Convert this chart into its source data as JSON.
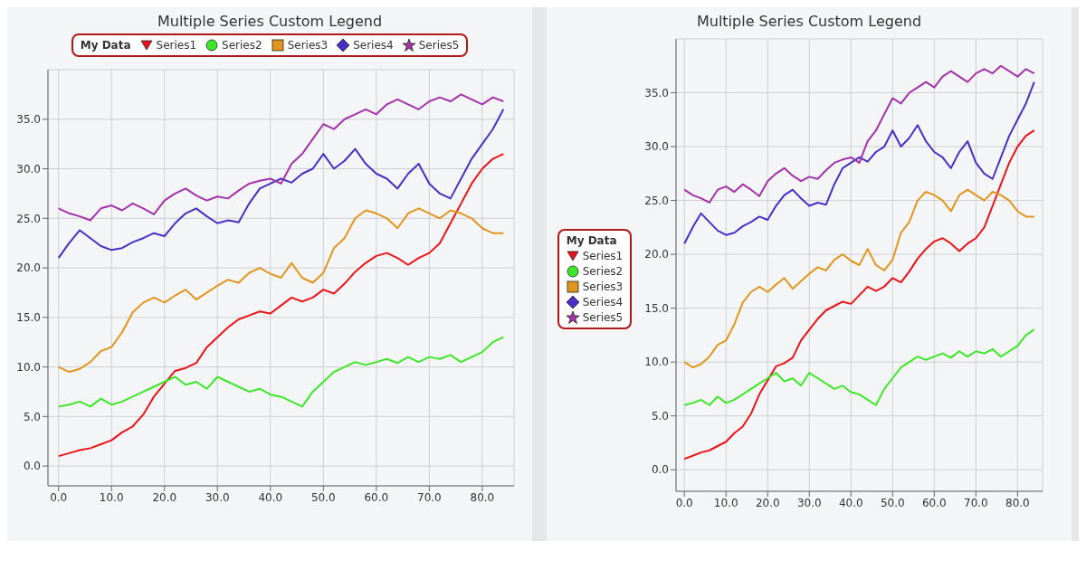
{
  "chart_data": [
    {
      "type": "line",
      "title": "Multiple Series Custom Legend",
      "legend_title": "My Data",
      "legend": "top",
      "grid": true,
      "x": [
        0,
        2,
        4,
        6,
        8,
        10,
        12,
        14,
        16,
        18,
        20,
        22,
        24,
        26,
        28,
        30,
        32,
        34,
        36,
        38,
        40,
        42,
        44,
        46,
        48,
        50,
        52,
        54,
        56,
        58,
        60,
        62,
        64,
        66,
        68,
        70,
        72,
        74,
        76,
        78,
        80,
        82,
        84
      ],
      "xlim": [
        -2,
        86
      ],
      "xticks": [
        {
          "value": 0,
          "label": "0.0"
        },
        {
          "value": 10,
          "label": "10.0"
        },
        {
          "value": 20,
          "label": "20.0"
        },
        {
          "value": 30,
          "label": "30.0"
        },
        {
          "value": 40,
          "label": "40.0"
        },
        {
          "value": 50,
          "label": "50.0"
        },
        {
          "value": 60,
          "label": "60.0"
        },
        {
          "value": 70,
          "label": "70.0"
        },
        {
          "value": 80,
          "label": "80.0"
        }
      ],
      "ylim": [
        -2,
        40
      ],
      "yticks": [
        {
          "value": 0,
          "label": "0.0"
        },
        {
          "value": 5,
          "label": "5.0"
        },
        {
          "value": 10,
          "label": "10.0"
        },
        {
          "value": 15,
          "label": "15.0"
        },
        {
          "value": 20,
          "label": "20.0"
        },
        {
          "value": 25,
          "label": "25.0"
        },
        {
          "value": 30,
          "label": "30.0"
        },
        {
          "value": 35,
          "label": "35.0"
        }
      ],
      "series": [
        {
          "name": "Series1",
          "color": "#e8141b",
          "values": [
            1.0,
            1.3,
            1.6,
            1.8,
            2.2,
            2.6,
            3.4,
            4.0,
            5.2,
            7.0,
            8.3,
            9.6,
            9.9,
            10.4,
            12.0,
            13.0,
            14.0,
            14.8,
            15.2,
            15.6,
            15.4,
            16.2,
            17.0,
            16.6,
            17.0,
            17.8,
            17.4,
            18.4,
            19.6,
            20.5,
            21.2,
            21.5,
            21.0,
            20.3,
            21.0,
            21.5,
            22.5,
            24.5,
            26.5,
            28.5,
            30.0,
            31.0,
            31.5
          ]
        },
        {
          "name": "Series2",
          "color": "#3ee62a",
          "values": [
            6.0,
            6.2,
            6.5,
            6.0,
            6.8,
            6.2,
            6.5,
            7.0,
            7.5,
            8.0,
            8.5,
            9.0,
            8.2,
            8.5,
            7.8,
            9.0,
            8.5,
            8.0,
            7.5,
            7.8,
            7.2,
            7.0,
            6.5,
            6.0,
            7.5,
            8.5,
            9.5,
            10.0,
            10.5,
            10.2,
            10.5,
            10.8,
            10.4,
            11.0,
            10.5,
            11.0,
            10.8,
            11.2,
            10.5,
            11.0,
            11.5,
            12.5,
            13.0
          ]
        },
        {
          "name": "Series3",
          "color": "#e0961e",
          "values": [
            10.0,
            9.5,
            9.8,
            10.5,
            11.6,
            12.0,
            13.5,
            15.5,
            16.5,
            17.0,
            16.5,
            17.2,
            17.8,
            16.8,
            17.5,
            18.2,
            18.8,
            18.5,
            19.5,
            20.0,
            19.4,
            19.0,
            20.5,
            19.0,
            18.5,
            19.5,
            22.0,
            23.0,
            25.0,
            25.8,
            25.5,
            25.0,
            24.0,
            25.5,
            26.0,
            25.5,
            25.0,
            25.8,
            25.5,
            25.0,
            24.0,
            23.5,
            23.5
          ]
        },
        {
          "name": "Series4",
          "color": "#4a2fc4",
          "values": [
            21.0,
            22.5,
            23.8,
            23.0,
            22.2,
            21.8,
            22.0,
            22.6,
            23.0,
            23.5,
            23.2,
            24.5,
            25.5,
            26.0,
            25.2,
            24.5,
            24.8,
            24.6,
            26.5,
            28.0,
            28.5,
            29.0,
            28.6,
            29.5,
            30.0,
            31.5,
            30.0,
            30.8,
            32.0,
            30.5,
            29.5,
            29.0,
            28.0,
            29.5,
            30.5,
            28.5,
            27.5,
            27.0,
            29.0,
            31.0,
            32.5,
            34.0,
            36.0
          ]
        },
        {
          "name": "Series5",
          "color": "#a233a8",
          "values": [
            26.0,
            25.5,
            25.2,
            24.8,
            26.0,
            26.3,
            25.8,
            26.5,
            26.0,
            25.4,
            26.8,
            27.5,
            28.0,
            27.3,
            26.8,
            27.2,
            27.0,
            27.8,
            28.5,
            28.8,
            29.0,
            28.5,
            30.5,
            31.5,
            33.0,
            34.5,
            34.0,
            35.0,
            35.5,
            36.0,
            35.5,
            36.5,
            37.0,
            36.5,
            36.0,
            36.8,
            37.2,
            36.8,
            37.5,
            37.0,
            36.5,
            37.2,
            36.8
          ]
        }
      ]
    },
    {
      "type": "line",
      "title": "Multiple Series Custom Legend",
      "legend_title": "My Data",
      "legend": "left",
      "grid": true,
      "x": [
        0,
        2,
        4,
        6,
        8,
        10,
        12,
        14,
        16,
        18,
        20,
        22,
        24,
        26,
        28,
        30,
        32,
        34,
        36,
        38,
        40,
        42,
        44,
        46,
        48,
        50,
        52,
        54,
        56,
        58,
        60,
        62,
        64,
        66,
        68,
        70,
        72,
        74,
        76,
        78,
        80,
        82,
        84
      ],
      "xlim": [
        -2,
        86
      ],
      "xticks": [
        {
          "value": 0,
          "label": "0.0"
        },
        {
          "value": 10,
          "label": "10.0"
        },
        {
          "value": 20,
          "label": "20.0"
        },
        {
          "value": 30,
          "label": "30.0"
        },
        {
          "value": 40,
          "label": "40.0"
        },
        {
          "value": 50,
          "label": "50.0"
        },
        {
          "value": 60,
          "label": "60.0"
        },
        {
          "value": 70,
          "label": "70.0"
        },
        {
          "value": 80,
          "label": "80.0"
        }
      ],
      "ylim": [
        -2,
        40
      ],
      "yticks": [
        {
          "value": 0,
          "label": "0.0"
        },
        {
          "value": 5,
          "label": "5.0"
        },
        {
          "value": 10,
          "label": "10.0"
        },
        {
          "value": 15,
          "label": "15.0"
        },
        {
          "value": 20,
          "label": "20.0"
        },
        {
          "value": 25,
          "label": "25.0"
        },
        {
          "value": 30,
          "label": "30.0"
        },
        {
          "value": 35,
          "label": "35.0"
        }
      ],
      "series": [
        {
          "name": "Series1",
          "color": "#e8141b",
          "values": [
            1.0,
            1.3,
            1.6,
            1.8,
            2.2,
            2.6,
            3.4,
            4.0,
            5.2,
            7.0,
            8.3,
            9.6,
            9.9,
            10.4,
            12.0,
            13.0,
            14.0,
            14.8,
            15.2,
            15.6,
            15.4,
            16.2,
            17.0,
            16.6,
            17.0,
            17.8,
            17.4,
            18.4,
            19.6,
            20.5,
            21.2,
            21.5,
            21.0,
            20.3,
            21.0,
            21.5,
            22.5,
            24.5,
            26.5,
            28.5,
            30.0,
            31.0,
            31.5
          ]
        },
        {
          "name": "Series2",
          "color": "#3ee62a",
          "values": [
            6.0,
            6.2,
            6.5,
            6.0,
            6.8,
            6.2,
            6.5,
            7.0,
            7.5,
            8.0,
            8.5,
            9.0,
            8.2,
            8.5,
            7.8,
            9.0,
            8.5,
            8.0,
            7.5,
            7.8,
            7.2,
            7.0,
            6.5,
            6.0,
            7.5,
            8.5,
            9.5,
            10.0,
            10.5,
            10.2,
            10.5,
            10.8,
            10.4,
            11.0,
            10.5,
            11.0,
            10.8,
            11.2,
            10.5,
            11.0,
            11.5,
            12.5,
            13.0
          ]
        },
        {
          "name": "Series3",
          "color": "#e0961e",
          "values": [
            10.0,
            9.5,
            9.8,
            10.5,
            11.6,
            12.0,
            13.5,
            15.5,
            16.5,
            17.0,
            16.5,
            17.2,
            17.8,
            16.8,
            17.5,
            18.2,
            18.8,
            18.5,
            19.5,
            20.0,
            19.4,
            19.0,
            20.5,
            19.0,
            18.5,
            19.5,
            22.0,
            23.0,
            25.0,
            25.8,
            25.5,
            25.0,
            24.0,
            25.5,
            26.0,
            25.5,
            25.0,
            25.8,
            25.5,
            25.0,
            24.0,
            23.5,
            23.5
          ]
        },
        {
          "name": "Series4",
          "color": "#4a2fc4",
          "values": [
            21.0,
            22.5,
            23.8,
            23.0,
            22.2,
            21.8,
            22.0,
            22.6,
            23.0,
            23.5,
            23.2,
            24.5,
            25.5,
            26.0,
            25.2,
            24.5,
            24.8,
            24.6,
            26.5,
            28.0,
            28.5,
            29.0,
            28.6,
            29.5,
            30.0,
            31.5,
            30.0,
            30.8,
            32.0,
            30.5,
            29.5,
            29.0,
            28.0,
            29.5,
            30.5,
            28.5,
            27.5,
            27.0,
            29.0,
            31.0,
            32.5,
            34.0,
            36.0
          ]
        },
        {
          "name": "Series5",
          "color": "#a233a8",
          "values": [
            26.0,
            25.5,
            25.2,
            24.8,
            26.0,
            26.3,
            25.8,
            26.5,
            26.0,
            25.4,
            26.8,
            27.5,
            28.0,
            27.3,
            26.8,
            27.2,
            27.0,
            27.8,
            28.5,
            28.8,
            29.0,
            28.5,
            30.5,
            31.5,
            33.0,
            34.5,
            34.0,
            35.0,
            35.5,
            36.0,
            35.5,
            36.5,
            37.0,
            36.5,
            36.0,
            36.8,
            37.2,
            36.8,
            37.5,
            37.0,
            36.5,
            37.2,
            36.8
          ]
        }
      ]
    }
  ]
}
